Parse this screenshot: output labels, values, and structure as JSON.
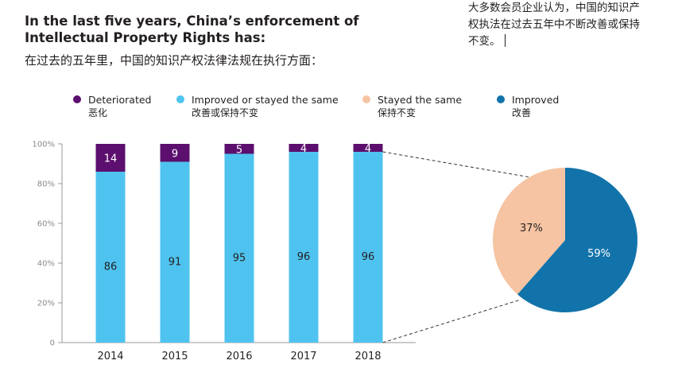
{
  "title": {
    "line1": "In the last five years, China’s enforcement of",
    "line2": "Intellectual Property Rights has:",
    "zh": "在过去的五年里，中国的知识产权法律法规在执行方面："
  },
  "note": {
    "line1": "大多数会员企业认为，中国的知识产",
    "line2": "权执法在过去五年中不断改善或保持",
    "line3": "不变。"
  },
  "legend": [
    {
      "en": "Deteriorated",
      "zh": "恶化",
      "color": "#5c0f6e"
    },
    {
      "en": "Improved or stayed the same",
      "zh": "改善或保持不变",
      "color": "#4fc3ef"
    },
    {
      "en": "Stayed the same",
      "zh": "保持不变",
      "color": "#f6c4a3"
    },
    {
      "en": "Improved",
      "zh": "改善",
      "color": "#1273aa"
    }
  ],
  "chart_data": [
    {
      "type": "bar",
      "stacked": true,
      "categories": [
        "2014",
        "2015",
        "2016",
        "2017",
        "2018"
      ],
      "series": [
        {
          "name": "Improved or stayed the same",
          "values": [
            86,
            91,
            95,
            96,
            96
          ],
          "color": "#4fc3ef"
        },
        {
          "name": "Deteriorated",
          "values": [
            14,
            9,
            5,
            4,
            4
          ],
          "color": "#5c0f6e"
        }
      ],
      "ylim": [
        0,
        100
      ],
      "yticks": [
        "0",
        "20%",
        "40%",
        "60%",
        "80%",
        "100%"
      ],
      "ytick_values": [
        0,
        20,
        40,
        60,
        80,
        100
      ],
      "grid": false,
      "legend": "top"
    },
    {
      "type": "pie",
      "categories": [
        "Improved",
        "Stayed the same"
      ],
      "values": [
        59,
        37
      ],
      "labels": [
        "59%",
        "37%"
      ],
      "colors": [
        "#1273aa",
        "#f6c4a3"
      ]
    }
  ]
}
